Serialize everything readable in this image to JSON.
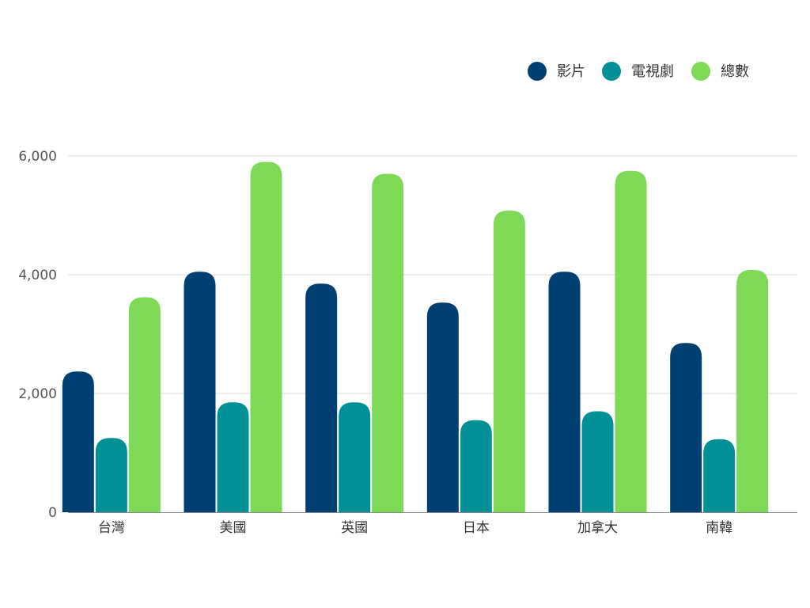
{
  "chart_data": {
    "type": "bar",
    "categories": [
      "台灣",
      "美國",
      "英國",
      "日本",
      "加拿大",
      "南韓"
    ],
    "series": [
      {
        "name": "影片",
        "color": "#003f72",
        "values": [
          2370,
          4050,
          3850,
          3530,
          4050,
          2850
        ]
      },
      {
        "name": "電視劇",
        "color": "#009096",
        "values": [
          1250,
          1850,
          1850,
          1550,
          1700,
          1230
        ]
      },
      {
        "name": "總數",
        "color": "#7ed957",
        "values": [
          3620,
          5900,
          5700,
          5080,
          5750,
          4080
        ]
      }
    ],
    "yticks": [
      "0",
      "2,000",
      "4,000",
      "6,000"
    ],
    "ytick_values": [
      0,
      2000,
      4000,
      6000
    ],
    "ylim": [
      0,
      6000
    ],
    "grid": true,
    "legend_position": "top-right"
  }
}
